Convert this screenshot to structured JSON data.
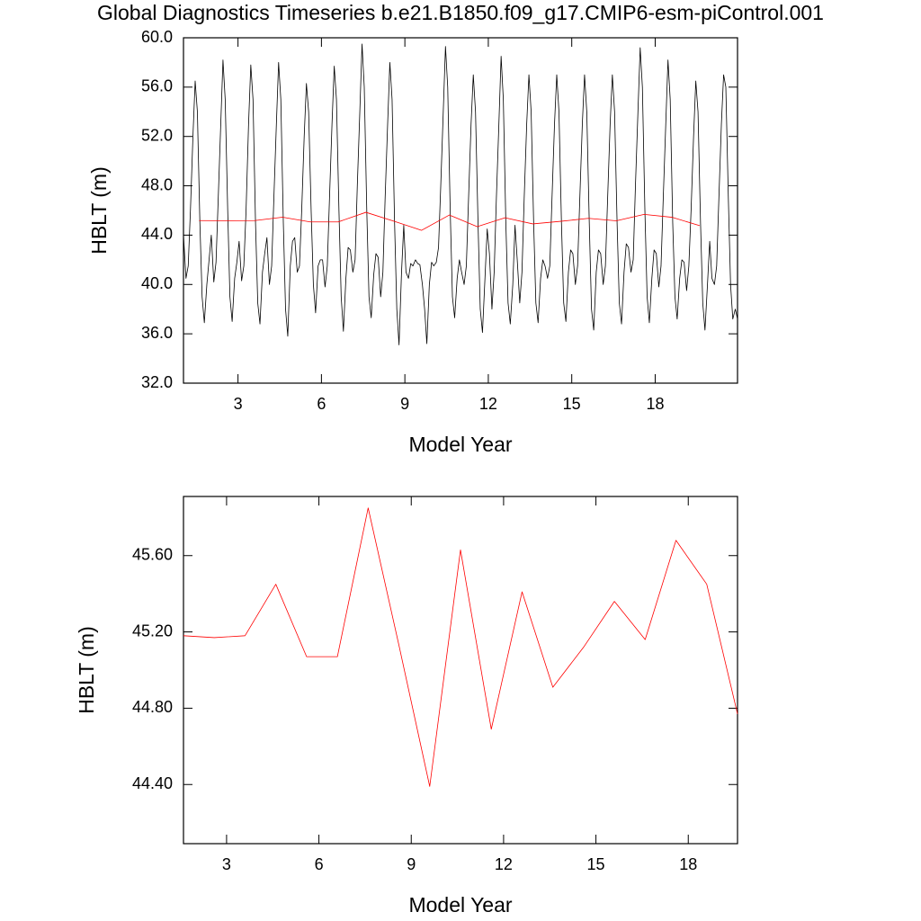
{
  "title": "Global Diagnostics Timeseries b.e21.B1850.f09_g17.CMIP6-esm-piControl.001",
  "chart_data": [
    {
      "type": "line",
      "xlabel": "Model Year",
      "ylabel": "HBLT (m)",
      "xlim": [
        1.04,
        20.96
      ],
      "xticks": [
        3,
        6,
        9,
        12,
        15,
        18
      ],
      "ylim": [
        32,
        60
      ],
      "yticks": [
        {
          "value": 32,
          "label": "32.0"
        },
        {
          "value": 36,
          "label": "36.0"
        },
        {
          "value": 40,
          "label": "40.0"
        },
        {
          "value": 44,
          "label": "44.0"
        },
        {
          "value": 48,
          "label": "48.0"
        },
        {
          "value": 52,
          "label": "52.0"
        },
        {
          "value": 56,
          "label": "56.0"
        },
        {
          "value": 60,
          "label": "60.0"
        }
      ],
      "series": [
        {
          "color": "#000000",
          "x": [
            1.04,
            1.13,
            1.21,
            1.29,
            1.38,
            1.46,
            1.54,
            1.63,
            1.71,
            1.79,
            1.88,
            1.96,
            2.04,
            2.13,
            2.21,
            2.29,
            2.38,
            2.46,
            2.54,
            2.63,
            2.71,
            2.79,
            2.88,
            2.96,
            3.04,
            3.13,
            3.21,
            3.29,
            3.38,
            3.46,
            3.54,
            3.63,
            3.71,
            3.79,
            3.88,
            3.96,
            4.04,
            4.13,
            4.21,
            4.29,
            4.38,
            4.46,
            4.54,
            4.63,
            4.71,
            4.79,
            4.88,
            4.96,
            5.04,
            5.13,
            5.21,
            5.29,
            5.38,
            5.46,
            5.54,
            5.63,
            5.71,
            5.79,
            5.88,
            5.96,
            6.04,
            6.13,
            6.21,
            6.29,
            6.38,
            6.46,
            6.54,
            6.63,
            6.71,
            6.79,
            6.88,
            6.96,
            7.04,
            7.13,
            7.21,
            7.29,
            7.38,
            7.46,
            7.54,
            7.63,
            7.71,
            7.79,
            7.88,
            7.96,
            8.04,
            8.13,
            8.21,
            8.29,
            8.38,
            8.46,
            8.54,
            8.63,
            8.71,
            8.79,
            8.88,
            8.96,
            9.04,
            9.13,
            9.21,
            9.29,
            9.38,
            9.46,
            9.54,
            9.63,
            9.71,
            9.79,
            9.88,
            9.96,
            10.04,
            10.13,
            10.21,
            10.29,
            10.38,
            10.46,
            10.54,
            10.63,
            10.71,
            10.79,
            10.88,
            10.96,
            11.04,
            11.13,
            11.21,
            11.29,
            11.38,
            11.46,
            11.54,
            11.63,
            11.71,
            11.79,
            11.88,
            11.96,
            12.04,
            12.13,
            12.21,
            12.29,
            12.38,
            12.46,
            12.54,
            12.63,
            12.71,
            12.79,
            12.88,
            12.96,
            13.04,
            13.13,
            13.21,
            13.29,
            13.38,
            13.46,
            13.54,
            13.63,
            13.71,
            13.79,
            13.88,
            13.96,
            14.04,
            14.13,
            14.21,
            14.29,
            14.38,
            14.46,
            14.54,
            14.63,
            14.71,
            14.79,
            14.88,
            14.96,
            15.04,
            15.13,
            15.21,
            15.29,
            15.38,
            15.46,
            15.54,
            15.63,
            15.71,
            15.79,
            15.88,
            15.96,
            16.04,
            16.13,
            16.21,
            16.29,
            16.38,
            16.46,
            16.54,
            16.63,
            16.71,
            16.79,
            16.88,
            16.96,
            17.04,
            17.13,
            17.21,
            17.29,
            17.38,
            17.46,
            17.54,
            17.63,
            17.71,
            17.79,
            17.88,
            17.96,
            18.04,
            18.13,
            18.21,
            18.29,
            18.38,
            18.46,
            18.54,
            18.63,
            18.71,
            18.79,
            18.88,
            18.96,
            19.04,
            19.13,
            19.21,
            19.29,
            19.38,
            19.46,
            19.54,
            19.63,
            19.71,
            19.79,
            19.88,
            19.96,
            20.04,
            20.13,
            20.21,
            20.29,
            20.38,
            20.46,
            20.54,
            20.63,
            20.71,
            20.79,
            20.88,
            20.96
          ],
          "values": [
            44,
            40.5,
            41.5,
            46,
            52,
            56.5,
            54,
            45,
            39,
            36.9,
            40,
            42,
            44,
            40.2,
            41.8,
            47,
            53,
            58.2,
            55,
            46,
            39,
            37.0,
            40.5,
            41.8,
            43.5,
            40.3,
            41.5,
            46,
            53,
            57.8,
            55,
            45,
            38.5,
            36.8,
            41,
            42.5,
            43.8,
            40,
            41.5,
            47,
            53,
            58.0,
            55,
            45,
            38,
            35.8,
            41.5,
            43.5,
            43.8,
            41,
            41.5,
            46,
            52,
            56.3,
            54,
            46,
            40,
            37.7,
            41.5,
            42,
            42,
            39.8,
            41.5,
            47,
            53,
            57.7,
            55,
            46,
            39,
            36.2,
            40.5,
            43,
            42.8,
            41,
            42,
            48,
            54,
            59.5,
            56,
            46,
            39,
            37.3,
            40.8,
            42.5,
            42.2,
            39,
            41,
            47,
            53,
            58.0,
            55,
            45,
            38,
            35.1,
            41,
            44.8,
            41,
            40.5,
            41.7,
            41.5,
            42,
            41.7,
            41.6,
            40,
            38,
            35.2,
            40,
            41.8,
            41.5,
            41.8,
            43,
            48,
            54,
            59.3,
            56,
            46,
            39,
            37.3,
            40.5,
            42,
            41,
            40,
            41.5,
            47,
            53,
            57.0,
            54,
            45,
            38,
            36.1,
            40.5,
            44.5,
            42.5,
            38,
            41,
            47,
            53,
            58.5,
            55,
            45,
            38.5,
            36.8,
            40,
            44.8,
            42,
            38.5,
            41,
            47,
            53,
            57.0,
            54,
            45,
            38.5,
            36.9,
            40.5,
            42,
            41.5,
            40.5,
            41.5,
            47,
            53,
            57.0,
            54,
            45,
            38.5,
            37.0,
            41,
            42.8,
            42.5,
            40,
            41.5,
            47,
            53,
            57.0,
            54,
            45,
            38,
            36.3,
            41,
            42.8,
            42.5,
            40,
            41.5,
            47,
            53,
            57.0,
            54,
            45,
            38.5,
            36.8,
            41,
            43.3,
            43,
            41,
            42,
            48,
            54,
            59.2,
            56,
            46,
            39,
            36.9,
            40.5,
            42.8,
            42.5,
            39.8,
            41.5,
            47,
            53,
            58.2,
            55,
            45,
            39,
            37.2,
            40.5,
            42,
            41.8,
            39.5,
            41.5,
            46,
            52,
            56.5,
            54,
            45,
            38.5,
            36.3,
            40,
            43.5,
            40.5,
            40,
            41.5,
            47,
            53,
            57.0,
            56,
            47,
            40,
            37.2,
            38,
            37.2
          ]
        },
        {
          "color": "#ff0000",
          "x": [
            1.6,
            2.6,
            3.6,
            4.6,
            5.6,
            6.6,
            7.6,
            8.6,
            9.6,
            10.6,
            11.6,
            12.6,
            13.6,
            14.6,
            15.6,
            16.6,
            17.6,
            18.6,
            19.6
          ],
          "values": [
            45.18,
            45.17,
            45.18,
            45.45,
            45.07,
            45.07,
            45.85,
            45.13,
            44.39,
            45.63,
            44.69,
            45.41,
            44.91,
            45.12,
            45.36,
            45.16,
            45.68,
            45.45,
            44.77
          ]
        }
      ]
    },
    {
      "type": "line",
      "xlabel": "Model Year",
      "ylabel": "HBLT (m)",
      "xlim": [
        1.6,
        19.6
      ],
      "xticks": [
        3,
        6,
        9,
        12,
        15,
        18
      ],
      "ylim": [
        44.09,
        45.91
      ],
      "yticks": [
        {
          "value": 44.4,
          "label": "44.40"
        },
        {
          "value": 44.8,
          "label": "44.80"
        },
        {
          "value": 45.2,
          "label": "45.20"
        },
        {
          "value": 45.6,
          "label": "45.60"
        }
      ],
      "series": [
        {
          "color": "#ff0000",
          "x": [
            1.6,
            2.6,
            3.6,
            4.6,
            5.6,
            6.6,
            7.6,
            8.6,
            9.6,
            10.6,
            11.6,
            12.6,
            13.6,
            14.6,
            15.6,
            16.6,
            17.6,
            18.6,
            19.6
          ],
          "values": [
            45.18,
            45.17,
            45.18,
            45.45,
            45.07,
            45.07,
            45.85,
            45.13,
            44.39,
            45.63,
            44.69,
            45.41,
            44.91,
            45.12,
            45.36,
            45.16,
            45.68,
            45.45,
            44.77
          ]
        }
      ]
    }
  ]
}
